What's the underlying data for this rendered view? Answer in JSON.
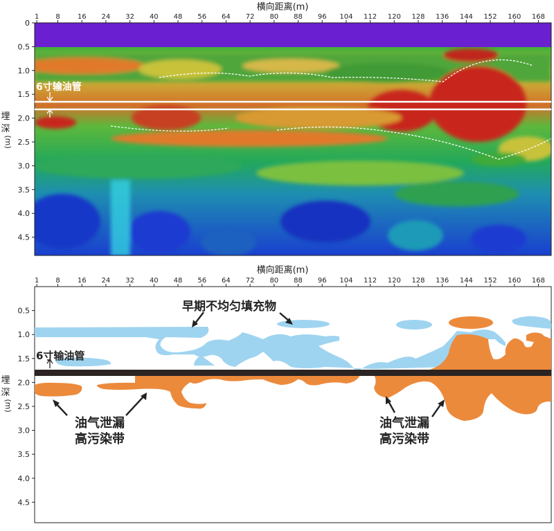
{
  "top_panel": {
    "title": "横向距离(m)",
    "x_ticks": [
      "1",
      "8",
      "16",
      "24",
      "32",
      "40",
      "48",
      "56",
      "64",
      "72",
      "80",
      "88",
      "96",
      "104",
      "112",
      "120",
      "128",
      "136",
      "144",
      "152",
      "160",
      "168"
    ],
    "y_ticks": [
      "0",
      "0.5",
      "1.0",
      "1.5",
      "2.0",
      "2.5",
      "3.0",
      "3.5",
      "4.0",
      "4.5"
    ],
    "y_label": [
      "埋",
      "深",
      "(m)"
    ],
    "pipe_label": "6寸输油管"
  },
  "bottom_panel": {
    "title": "横向距离(m)",
    "x_ticks": [
      "1",
      "8",
      "16",
      "24",
      "32",
      "40",
      "48",
      "56",
      "64",
      "72",
      "80",
      "88",
      "96",
      "104",
      "112",
      "120",
      "128",
      "136",
      "144",
      "152",
      "160",
      "168"
    ],
    "y_ticks": [
      "0.5",
      "1.0",
      "1.5",
      "2.0",
      "2.5",
      "3.0",
      "3.5",
      "4.0",
      "4.5"
    ],
    "y_label": [
      "埋",
      "深",
      "(m)"
    ],
    "pipe_label": "6寸输油管",
    "fill_label": "早期不均匀填充物",
    "leak_label_left": [
      "油气泄漏",
      "高污染带"
    ],
    "leak_label_right": [
      "油气泄漏",
      "高污染带"
    ]
  },
  "colors": {
    "purple": "#6a1fd0",
    "orange": "#ec8a3c",
    "light_blue": "#9fd4f0",
    "pipe": "#2b2422"
  }
}
